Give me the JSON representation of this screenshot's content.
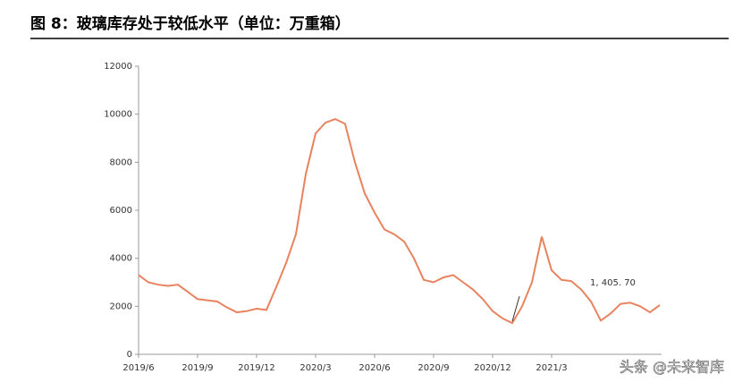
{
  "chart_data": {
    "type": "line",
    "title": "图 8：玻璃库存处于较低水平（单位：万重箱）",
    "categories": [
      "2019/6",
      null,
      null,
      null,
      null,
      null,
      "2019/9",
      null,
      null,
      null,
      null,
      null,
      "2019/12",
      null,
      null,
      null,
      null,
      null,
      "2020/3",
      null,
      null,
      null,
      null,
      null,
      "2020/6",
      null,
      null,
      null,
      null,
      null,
      "2020/9",
      null,
      null,
      null,
      null,
      null,
      "2020/12",
      null,
      null,
      null,
      null,
      null,
      "2021/3",
      null,
      null,
      null,
      null,
      null,
      null,
      null,
      null,
      null,
      null,
      null
    ],
    "series": [
      {
        "name": "玻璃库存",
        "color": "#e8825f",
        "values": [
          3300,
          3000,
          2900,
          2850,
          2900,
          2600,
          2300,
          2250,
          2200,
          1950,
          1750,
          1800,
          1900,
          1850,
          2800,
          3800,
          5000,
          7500,
          9200,
          9650,
          9800,
          9600,
          8000,
          6700,
          5900,
          5200,
          5000,
          4700,
          4000,
          3100,
          3000,
          3200,
          3300,
          3000,
          2700,
          2300,
          1800,
          1500,
          1300,
          2000,
          3000,
          4900,
          3500,
          3100,
          3050,
          2700,
          2200,
          1405.7,
          1700,
          2100,
          2150,
          2000,
          1750,
          2050
        ]
      }
    ],
    "ylim": [
      0,
      12000
    ],
    "yticks": [
      0,
      2000,
      4000,
      6000,
      8000,
      10000,
      12000
    ],
    "annotation": "1, 405. 70",
    "watermark": "头条 @未来智库"
  }
}
